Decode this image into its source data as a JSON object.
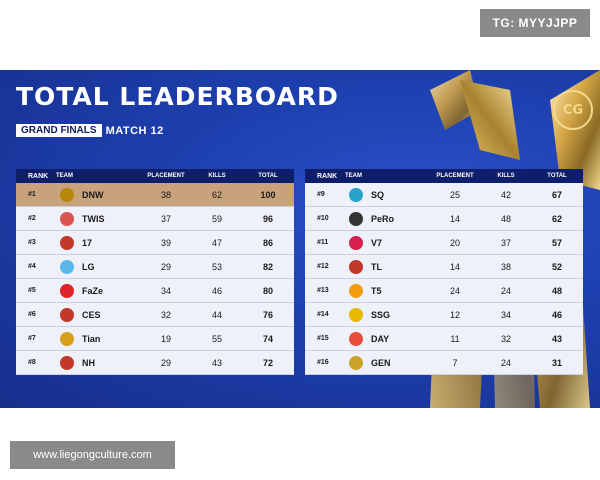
{
  "watermark_top": "TG: MYYJJPP",
  "watermark_bottom": "www.liegongculture.com",
  "banner": {
    "title": "TOTAL LEADERBOARD",
    "stage": "GRAND FINALS",
    "match": "MATCH 12",
    "logo_text": "CG"
  },
  "headers": {
    "rank": "RANK",
    "team": "TEAM",
    "placement": "PLACEMENT",
    "kills": "KILLS",
    "total": "TOTAL"
  },
  "left": [
    {
      "rank": "#1",
      "team": "DNW",
      "placement": "38",
      "kills": "62",
      "total": "100",
      "logo_color": "#b8860b",
      "highlight": true
    },
    {
      "rank": "#2",
      "team": "TWIS",
      "placement": "37",
      "kills": "59",
      "total": "96",
      "logo_color": "#d9534f"
    },
    {
      "rank": "#3",
      "team": "17",
      "placement": "39",
      "kills": "47",
      "total": "86",
      "logo_color": "#c0392b"
    },
    {
      "rank": "#4",
      "team": "LG",
      "placement": "29",
      "kills": "53",
      "total": "82",
      "logo_color": "#5bb8e8"
    },
    {
      "rank": "#5",
      "team": "FaZe",
      "placement": "34",
      "kills": "46",
      "total": "80",
      "logo_color": "#e0242b"
    },
    {
      "rank": "#6",
      "team": "CES",
      "placement": "32",
      "kills": "44",
      "total": "76",
      "logo_color": "#c0392b"
    },
    {
      "rank": "#7",
      "team": "Tian",
      "placement": "19",
      "kills": "55",
      "total": "74",
      "logo_color": "#d4a017"
    },
    {
      "rank": "#8",
      "team": "NH",
      "placement": "29",
      "kills": "43",
      "total": "72",
      "logo_color": "#c0392b"
    }
  ],
  "right": [
    {
      "rank": "#9",
      "team": "SQ",
      "placement": "25",
      "kills": "42",
      "total": "67",
      "logo_color": "#29a3c7"
    },
    {
      "rank": "#10",
      "team": "PeRo",
      "placement": "14",
      "kills": "48",
      "total": "62",
      "logo_color": "#333333"
    },
    {
      "rank": "#11",
      "team": "V7",
      "placement": "20",
      "kills": "37",
      "total": "57",
      "logo_color": "#d6204f"
    },
    {
      "rank": "#12",
      "team": "TL",
      "placement": "14",
      "kills": "38",
      "total": "52",
      "logo_color": "#c0392b"
    },
    {
      "rank": "#13",
      "team": "T5",
      "placement": "24",
      "kills": "24",
      "total": "48",
      "logo_color": "#f39c12"
    },
    {
      "rank": "#14",
      "team": "SSG",
      "placement": "12",
      "kills": "34",
      "total": "46",
      "logo_color": "#e6b800"
    },
    {
      "rank": "#15",
      "team": "DAY",
      "placement": "11",
      "kills": "32",
      "total": "43",
      "logo_color": "#e74c3c"
    },
    {
      "rank": "#16",
      "team": "GEN",
      "placement": "7",
      "kills": "24",
      "total": "31",
      "logo_color": "#c9a227"
    }
  ]
}
